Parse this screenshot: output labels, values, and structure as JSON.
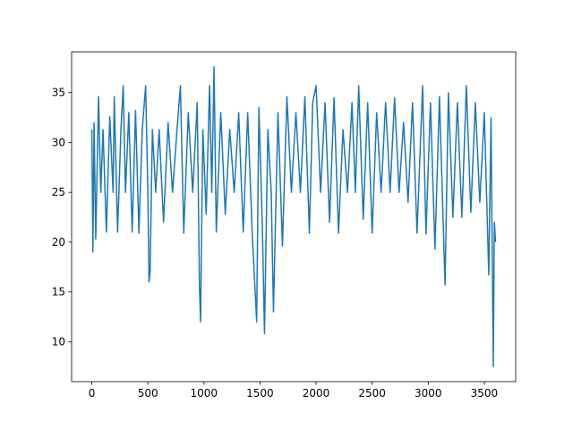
{
  "chart_data": {
    "type": "line",
    "x": [
      0,
      10,
      20,
      35,
      60,
      80,
      100,
      130,
      160,
      190,
      200,
      230,
      260,
      280,
      300,
      330,
      360,
      390,
      420,
      450,
      480,
      500,
      510,
      520,
      540,
      570,
      600,
      640,
      680,
      720,
      760,
      790,
      820,
      860,
      900,
      940,
      960,
      970,
      990,
      1020,
      1050,
      1070,
      1090,
      1110,
      1150,
      1190,
      1230,
      1270,
      1310,
      1350,
      1390,
      1430,
      1470,
      1490,
      1520,
      1540,
      1570,
      1600,
      1620,
      1660,
      1700,
      1740,
      1780,
      1820,
      1860,
      1900,
      1940,
      1970,
      2000,
      2040,
      2080,
      2120,
      2160,
      2200,
      2240,
      2280,
      2320,
      2350,
      2380,
      2420,
      2460,
      2500,
      2540,
      2580,
      2620,
      2660,
      2700,
      2740,
      2780,
      2820,
      2860,
      2900,
      2950,
      2980,
      3020,
      3060,
      3100,
      3150,
      3180,
      3220,
      3260,
      3300,
      3340,
      3380,
      3420,
      3460,
      3500,
      3540,
      3560,
      3580,
      3590,
      3600
    ],
    "series": [
      {
        "color": "#1f77b4",
        "values": [
          31.3,
          19,
          32,
          20.3,
          34.6,
          25,
          31.3,
          21,
          32.6,
          25,
          34.6,
          21,
          31.3,
          35.7,
          25,
          33,
          21,
          33.2,
          20.9,
          31.3,
          35.7,
          25,
          16,
          17,
          31.3,
          25,
          31.3,
          22,
          32,
          25,
          31.3,
          35.7,
          20.9,
          33,
          25,
          34,
          15.5,
          12,
          31.3,
          22.8,
          35.7,
          25,
          37.6,
          21,
          33,
          22.8,
          31.3,
          25,
          33,
          21,
          33,
          21,
          12,
          33.5,
          22,
          10.8,
          31.3,
          25,
          13,
          33,
          19.6,
          34.6,
          25,
          33,
          25,
          34.6,
          20.9,
          34,
          35.7,
          25,
          34,
          22,
          34.5,
          20.9,
          31.3,
          25,
          34,
          25,
          35.7,
          22.3,
          34,
          20.9,
          33,
          25,
          34,
          25,
          34.5,
          25,
          32,
          24,
          34,
          20.9,
          35.7,
          20.8,
          34,
          19.3,
          34.6,
          15.7,
          35,
          22.5,
          34,
          22.5,
          35.7,
          23,
          34,
          24,
          33,
          16.7,
          32.5,
          7.5,
          22,
          20
        ]
      }
    ],
    "xlim": [
      -180,
      3780
    ],
    "ylim": [
      6.0,
      39.1
    ],
    "xticks": [
      0,
      500,
      1000,
      1500,
      2000,
      2500,
      3000,
      3500
    ],
    "yticks": [
      10,
      15,
      20,
      25,
      30,
      35
    ]
  }
}
